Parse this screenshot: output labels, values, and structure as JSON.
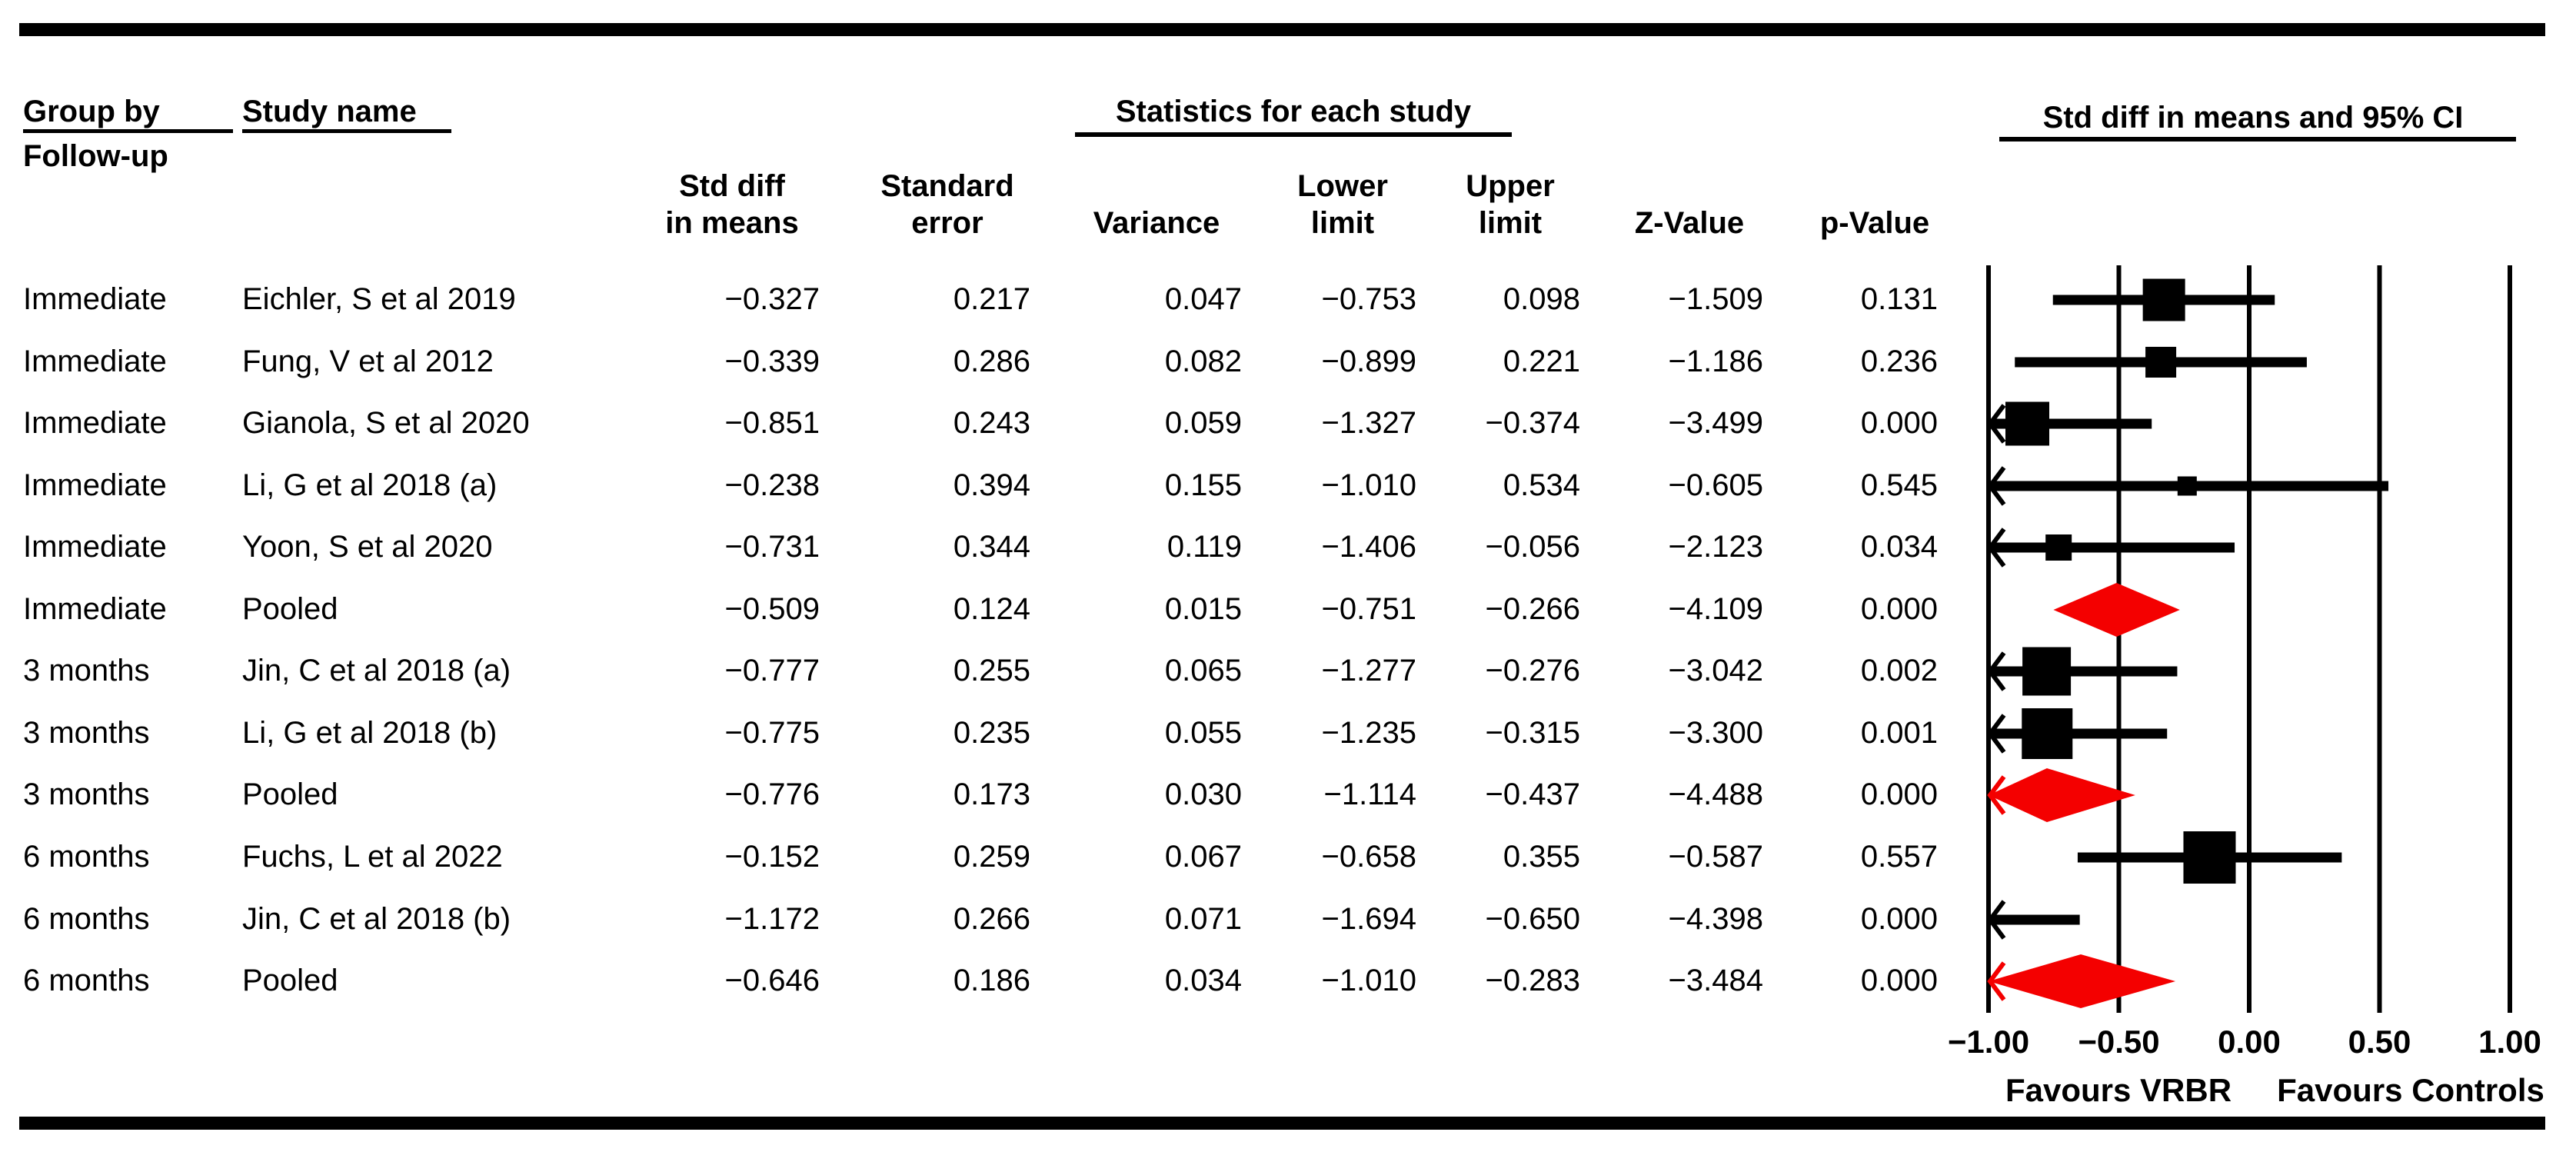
{
  "colors": {
    "marker_black": "#000000",
    "pooled_red": "#f40000",
    "text": "#000000",
    "rule": "#000000",
    "background": "#ffffff"
  },
  "header": {
    "group_by_label": "Group by",
    "group_by_sublabel": "Follow-up",
    "study_label": "Study name",
    "stats_title": "Statistics for each study",
    "ci_title": "Std diff in means and 95% CI",
    "columns": [
      {
        "line1": "Std diff",
        "line2": "in means"
      },
      {
        "line1": "Standard",
        "line2": "error"
      },
      {
        "line1": "",
        "line2": "Variance"
      },
      {
        "line1": "Lower",
        "line2": "limit"
      },
      {
        "line1": "Upper",
        "line2": "limit"
      },
      {
        "line1": "",
        "line2": "Z-Value"
      },
      {
        "line1": "",
        "line2": "p-Value"
      }
    ]
  },
  "rows": [
    {
      "group": "Immediate",
      "study": "Eichler, S et al 2019",
      "stats": [
        "−0.327",
        "0.217",
        "0.047",
        "−0.753",
        "0.098",
        "−1.509",
        "0.131"
      ],
      "marker": {
        "kind": "study",
        "point": -0.327,
        "lower": -0.753,
        "upper": 0.098,
        "size": 55
      }
    },
    {
      "group": "Immediate",
      "study": "Fung, V et al 2012",
      "stats": [
        "−0.339",
        "0.286",
        "0.082",
        "−0.899",
        "0.221",
        "−1.186",
        "0.236"
      ],
      "marker": {
        "kind": "study",
        "point": -0.339,
        "lower": -0.899,
        "upper": 0.221,
        "size": 40
      }
    },
    {
      "group": "Immediate",
      "study": "Gianola, S et al 2020",
      "stats": [
        "−0.851",
        "0.243",
        "0.059",
        "−1.327",
        "−0.374",
        "−3.499",
        "0.000"
      ],
      "marker": {
        "kind": "study",
        "point": -0.851,
        "lower": -1.327,
        "upper": -0.374,
        "size": 57
      }
    },
    {
      "group": "Immediate",
      "study": "Li, G et al 2018 (a)",
      "stats": [
        "−0.238",
        "0.394",
        "0.155",
        "−1.010",
        "0.534",
        "−0.605",
        "0.545"
      ],
      "marker": {
        "kind": "study",
        "point": -0.238,
        "lower": -1.01,
        "upper": 0.534,
        "size": 25
      }
    },
    {
      "group": "Immediate",
      "study": "Yoon, S et al 2020",
      "stats": [
        "−0.731",
        "0.344",
        "0.119",
        "−1.406",
        "−0.056",
        "−2.123",
        "0.034"
      ],
      "marker": {
        "kind": "study",
        "point": -0.731,
        "lower": -1.406,
        "upper": -0.056,
        "size": 34
      }
    },
    {
      "group": "Immediate",
      "study": "Pooled",
      "stats": [
        "−0.509",
        "0.124",
        "0.015",
        "−0.751",
        "−0.266",
        "−4.109",
        "0.000"
      ],
      "marker": {
        "kind": "pooled",
        "point": -0.509,
        "lower": -0.751,
        "upper": -0.266
      }
    },
    {
      "group": "3 months",
      "study": "Jin, C et al 2018 (a)",
      "stats": [
        "−0.777",
        "0.255",
        "0.065",
        "−1.277",
        "−0.276",
        "−3.042",
        "0.002"
      ],
      "marker": {
        "kind": "study",
        "point": -0.777,
        "lower": -1.277,
        "upper": -0.276,
        "size": 63
      }
    },
    {
      "group": "3 months",
      "study": "Li, G et al 2018 (b)",
      "stats": [
        "−0.775",
        "0.235",
        "0.055",
        "−1.235",
        "−0.315",
        "−3.300",
        "0.001"
      ],
      "marker": {
        "kind": "study",
        "point": -0.775,
        "lower": -1.235,
        "upper": -0.315,
        "size": 66
      }
    },
    {
      "group": "3 months",
      "study": "Pooled",
      "stats": [
        "−0.776",
        "0.173",
        "0.030",
        "−1.114",
        "−0.437",
        "−4.488",
        "0.000"
      ],
      "marker": {
        "kind": "pooled",
        "point": -0.776,
        "lower": -1.114,
        "upper": -0.437
      }
    },
    {
      "group": "6 months",
      "study": "Fuchs, L et al 2022",
      "stats": [
        "−0.152",
        "0.259",
        "0.067",
        "−0.658",
        "0.355",
        "−0.587",
        "0.557"
      ],
      "marker": {
        "kind": "study",
        "point": -0.152,
        "lower": -0.658,
        "upper": 0.355,
        "size": 68
      }
    },
    {
      "group": "6 months",
      "study": "Jin, C et al 2018 (b)",
      "stats": [
        "−1.172",
        "0.266",
        "0.071",
        "−1.694",
        "−0.650",
        "−4.398",
        "0.000"
      ],
      "marker": {
        "kind": "study",
        "point": -1.172,
        "lower": -1.694,
        "upper": -0.65,
        "size": 0
      }
    },
    {
      "group": "6 months",
      "study": "Pooled",
      "stats": [
        "−0.646",
        "0.186",
        "0.034",
        "−1.010",
        "−0.283",
        "−3.484",
        "0.000"
      ],
      "marker": {
        "kind": "pooled",
        "point": -0.646,
        "lower": -1.01,
        "upper": -0.283
      }
    }
  ],
  "axis": {
    "ticks": [
      "−1.00",
      "−0.50",
      "0.00",
      "0.50",
      "1.00"
    ],
    "tick_values": [
      -1.0,
      -0.5,
      0.0,
      0.5,
      1.0
    ],
    "favours_left": "Favours VRBR",
    "favours_right": "Favours Controls"
  },
  "chart_data": {
    "type": "scatter",
    "variant": "forest-plot-meta-analysis",
    "title": "Std diff in means and 95% CI",
    "stats_panel_title": "Statistics for each study",
    "group_by": "Follow-up",
    "columns": [
      "Std diff in means",
      "Standard error",
      "Variance",
      "Lower limit",
      "Upper limit",
      "Z-Value",
      "p-Value"
    ],
    "xlim": [
      -1.0,
      1.0
    ],
    "x_ticks": [
      -1.0,
      -0.5,
      0.0,
      0.5,
      1.0
    ],
    "x_annotation_left": "Favours VRBR",
    "x_annotation_right": "Favours Controls",
    "grid": true,
    "studies": [
      {
        "group": "Immediate",
        "name": "Eichler, S et al 2019",
        "std_diff": -0.327,
        "se": 0.217,
        "variance": 0.047,
        "lower": -0.753,
        "upper": 0.098,
        "z": -1.509,
        "p": 0.131,
        "pooled": false
      },
      {
        "group": "Immediate",
        "name": "Fung, V et al 2012",
        "std_diff": -0.339,
        "se": 0.286,
        "variance": 0.082,
        "lower": -0.899,
        "upper": 0.221,
        "z": -1.186,
        "p": 0.236,
        "pooled": false
      },
      {
        "group": "Immediate",
        "name": "Gianola, S et al 2020",
        "std_diff": -0.851,
        "se": 0.243,
        "variance": 0.059,
        "lower": -1.327,
        "upper": -0.374,
        "z": -3.499,
        "p": 0.0,
        "pooled": false
      },
      {
        "group": "Immediate",
        "name": "Li, G et al 2018 (a)",
        "std_diff": -0.238,
        "se": 0.394,
        "variance": 0.155,
        "lower": -1.01,
        "upper": 0.534,
        "z": -0.605,
        "p": 0.545,
        "pooled": false
      },
      {
        "group": "Immediate",
        "name": "Yoon, S et al 2020",
        "std_diff": -0.731,
        "se": 0.344,
        "variance": 0.119,
        "lower": -1.406,
        "upper": -0.056,
        "z": -2.123,
        "p": 0.034,
        "pooled": false
      },
      {
        "group": "Immediate",
        "name": "Pooled",
        "std_diff": -0.509,
        "se": 0.124,
        "variance": 0.015,
        "lower": -0.751,
        "upper": -0.266,
        "z": -4.109,
        "p": 0.0,
        "pooled": true
      },
      {
        "group": "3 months",
        "name": "Jin, C et al 2018 (a)",
        "std_diff": -0.777,
        "se": 0.255,
        "variance": 0.065,
        "lower": -1.277,
        "upper": -0.276,
        "z": -3.042,
        "p": 0.002,
        "pooled": false
      },
      {
        "group": "3 months",
        "name": "Li, G et al 2018 (b)",
        "std_diff": -0.775,
        "se": 0.235,
        "variance": 0.055,
        "lower": -1.235,
        "upper": -0.315,
        "z": -3.3,
        "p": 0.001,
        "pooled": false
      },
      {
        "group": "3 months",
        "name": "Pooled",
        "std_diff": -0.776,
        "se": 0.173,
        "variance": 0.03,
        "lower": -1.114,
        "upper": -0.437,
        "z": -4.488,
        "p": 0.0,
        "pooled": true
      },
      {
        "group": "6 months",
        "name": "Fuchs, L et al 2022",
        "std_diff": -0.152,
        "se": 0.259,
        "variance": 0.067,
        "lower": -0.658,
        "upper": 0.355,
        "z": -0.587,
        "p": 0.557,
        "pooled": false
      },
      {
        "group": "6 months",
        "name": "Jin, C et al 2018 (b)",
        "std_diff": -1.172,
        "se": 0.266,
        "variance": 0.071,
        "lower": -1.694,
        "upper": -0.65,
        "z": -4.398,
        "p": 0.0,
        "pooled": false
      },
      {
        "group": "6 months",
        "name": "Pooled",
        "std_diff": -0.646,
        "se": 0.186,
        "variance": 0.034,
        "lower": -1.01,
        "upper": -0.283,
        "z": -3.484,
        "p": 0.0,
        "pooled": true
      }
    ]
  }
}
